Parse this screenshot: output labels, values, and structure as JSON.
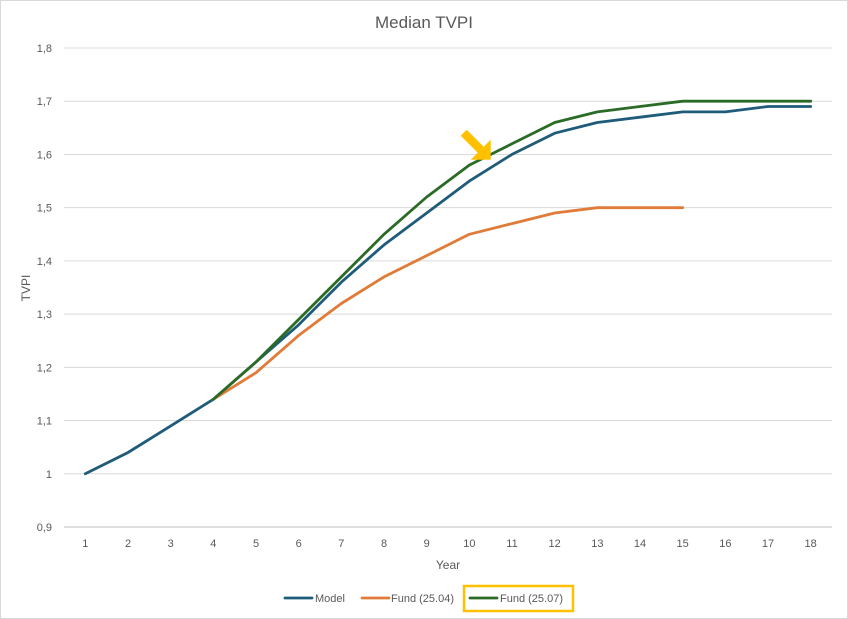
{
  "chart_data": {
    "type": "line",
    "title": "Median TVPI",
    "xlabel": "Year",
    "ylabel": "TVPI",
    "categories": [
      "1",
      "2",
      "3",
      "4",
      "5",
      "6",
      "7",
      "8",
      "9",
      "10",
      "11",
      "12",
      "13",
      "14",
      "15",
      "16",
      "17",
      "18"
    ],
    "ylim": [
      0.9,
      1.8
    ],
    "yticks": [
      "0,9",
      "1",
      "1,1",
      "1,2",
      "1,3",
      "1,4",
      "1,5",
      "1,6",
      "1,7",
      "1,8"
    ],
    "ytick_values": [
      0.9,
      1.0,
      1.1,
      1.2,
      1.3,
      1.4,
      1.5,
      1.6,
      1.7,
      1.8
    ],
    "grid": true,
    "legend_position": "bottom",
    "series": [
      {
        "name": "Model",
        "color": "#1f5c7a",
        "values": [
          1.0,
          1.04,
          1.09,
          1.14,
          1.21,
          1.28,
          1.36,
          1.43,
          1.49,
          1.55,
          1.6,
          1.64,
          1.66,
          1.67,
          1.68,
          1.68,
          1.69,
          1.69
        ]
      },
      {
        "name": "Fund (25.04)",
        "color": "#e07b39",
        "values": [
          null,
          null,
          null,
          1.14,
          1.19,
          1.26,
          1.32,
          1.37,
          1.41,
          1.45,
          1.47,
          1.49,
          1.5,
          1.5,
          1.5,
          null,
          null,
          null
        ]
      },
      {
        "name": "Fund (25.07)",
        "color": "#2a6b26",
        "values": [
          null,
          null,
          null,
          1.14,
          1.21,
          1.29,
          1.37,
          1.45,
          1.52,
          1.58,
          1.62,
          1.66,
          1.68,
          1.69,
          1.7,
          1.7,
          1.7,
          1.7
        ]
      }
    ],
    "annotations": [
      {
        "type": "arrow",
        "color": "#ffc000",
        "points_to": {
          "x": 10.5,
          "y": 1.59
        }
      },
      {
        "type": "highlight-box",
        "color": "#ffc000",
        "target": "Fund (25.07)"
      }
    ]
  }
}
